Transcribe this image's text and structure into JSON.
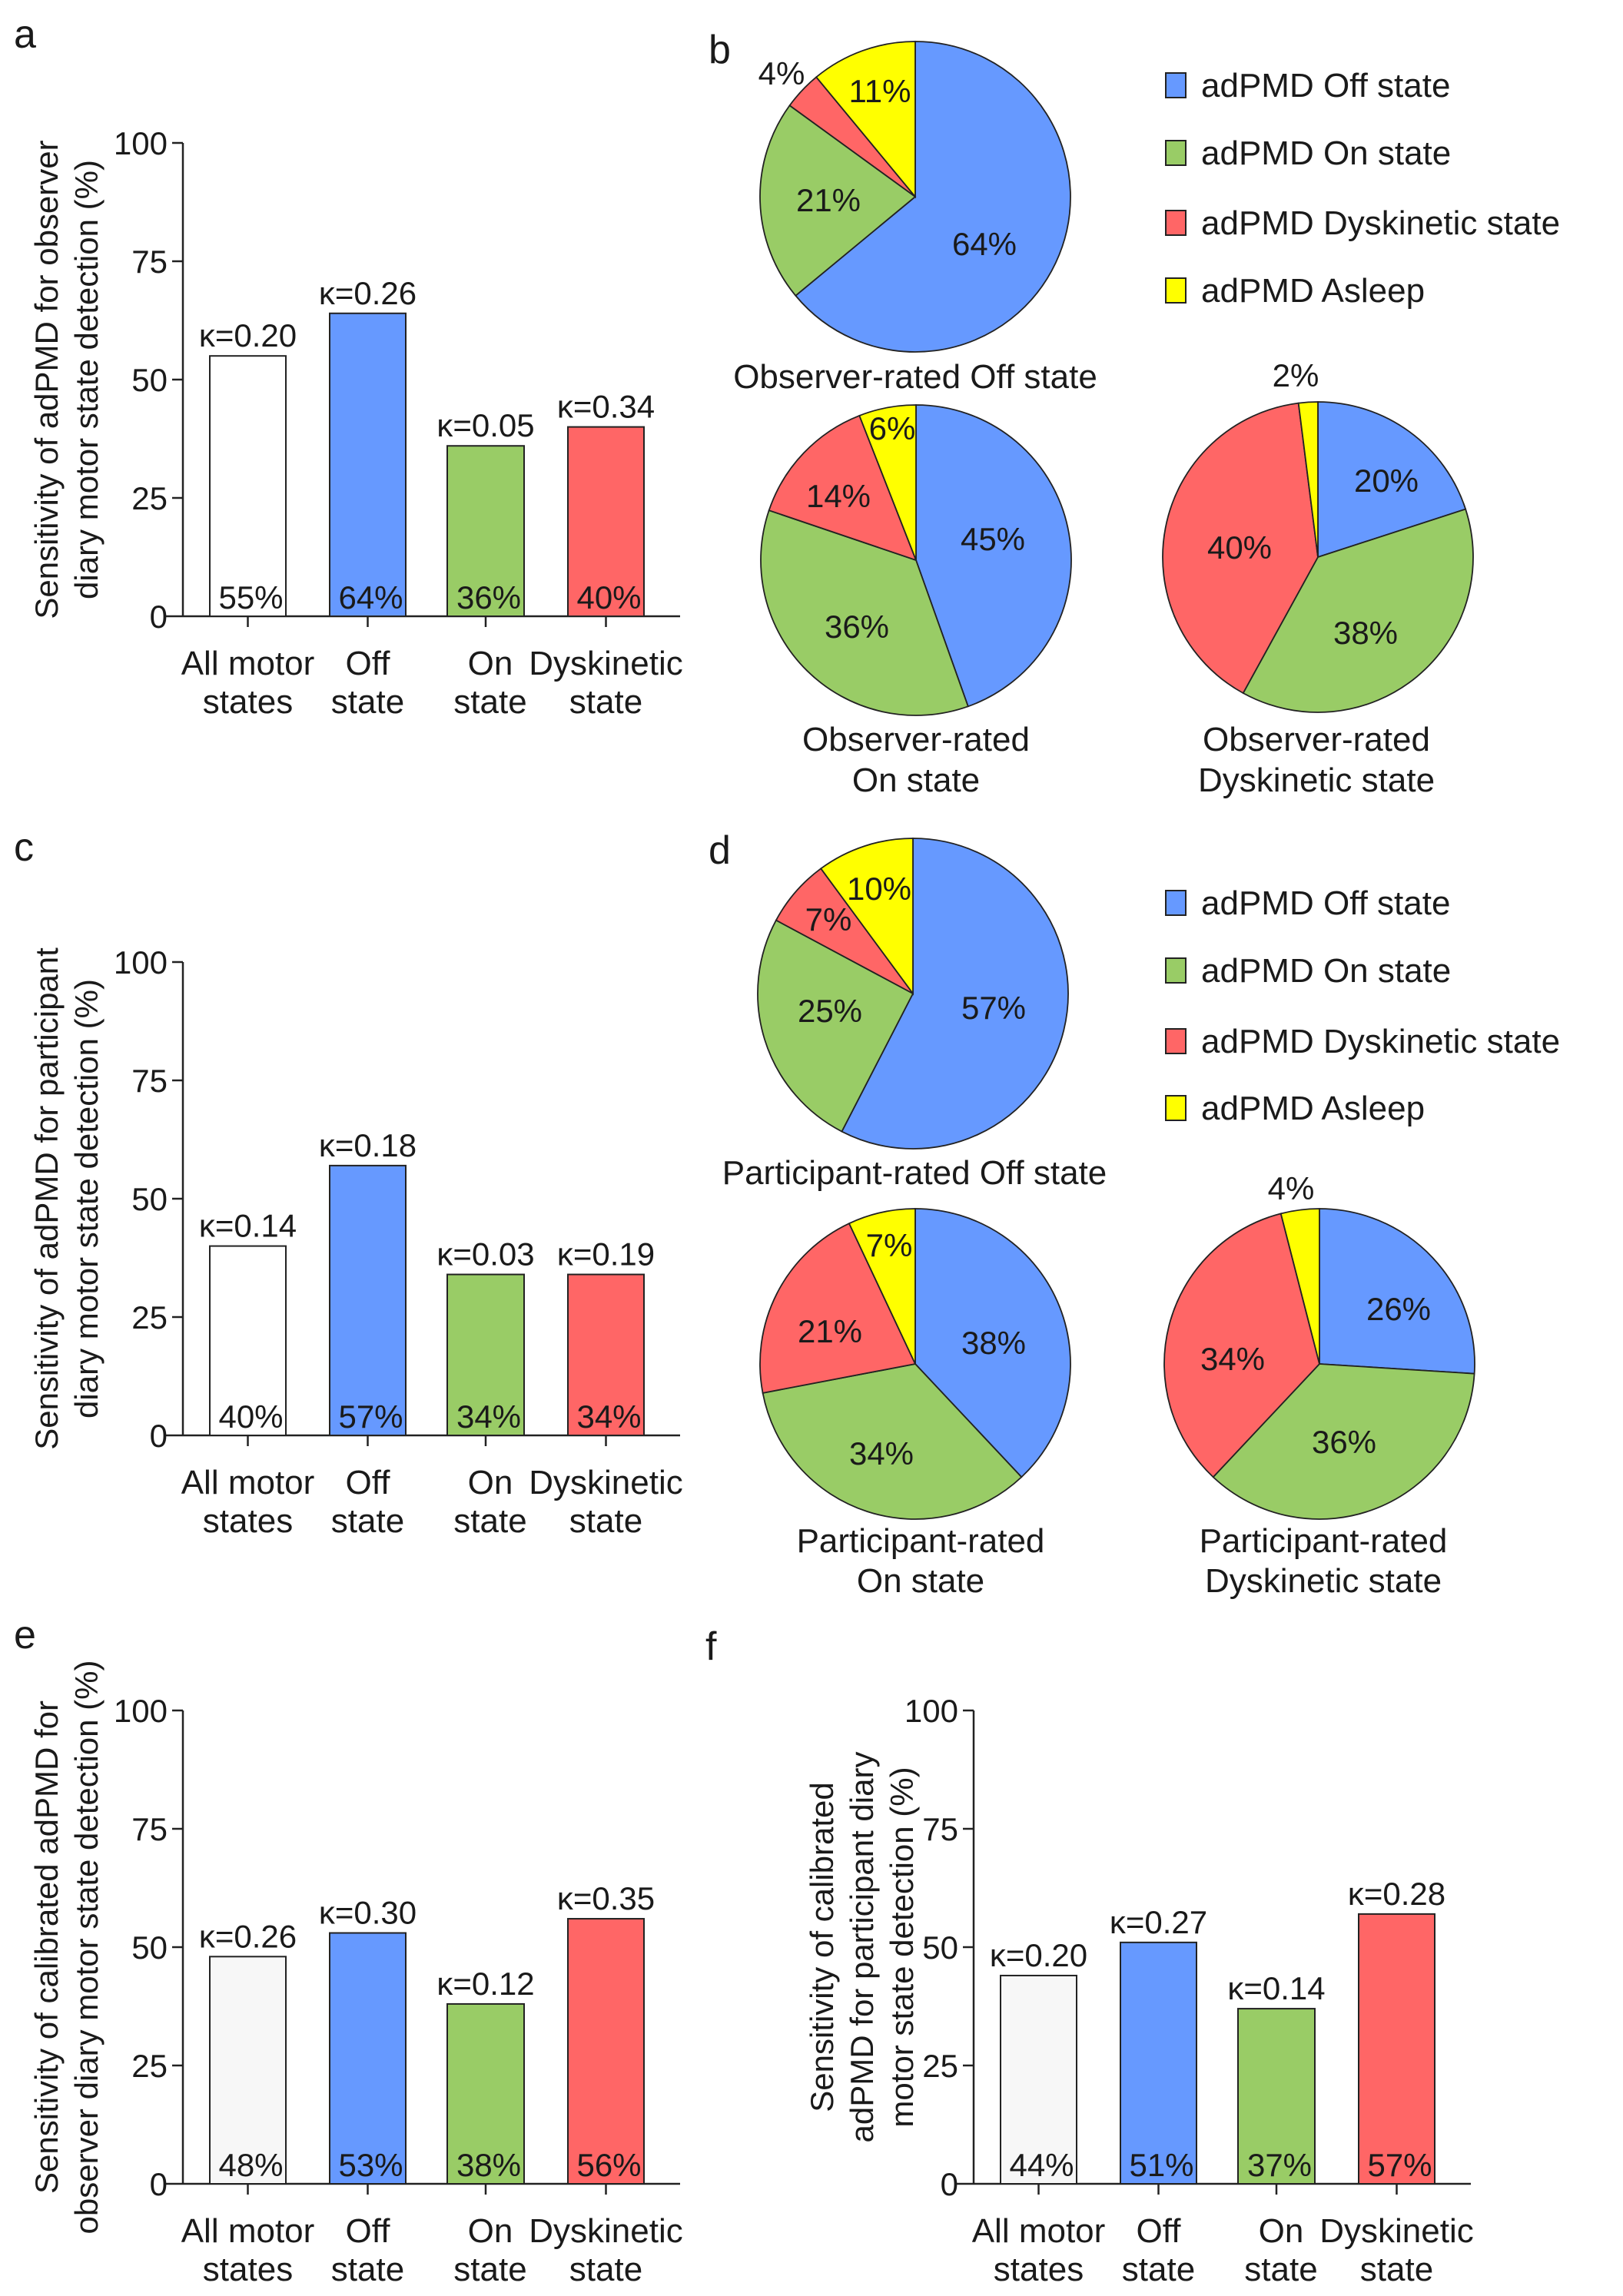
{
  "colors": {
    "off": "#6699ff",
    "on": "#99cc66",
    "dyskinetic": "#ff6666",
    "asleep": "#ffff00",
    "all_observer": "#ffffff",
    "all_calibrated": "#f7f7f7"
  },
  "legend": [
    "adPMD Off state",
    "adPMD On state",
    "adPMD Dyskinetic state",
    "adPMD Asleep"
  ],
  "chart_data": [
    {
      "panel": "a",
      "type": "bar",
      "ylabel_lines": [
        "Sensitivity of adPMD for observer",
        "diary motor state detection (%)"
      ],
      "ylim": [
        0,
        100
      ],
      "yticks": [
        "0",
        "25",
        "50",
        "75",
        "100"
      ],
      "categories": [
        [
          "All motor",
          "states"
        ],
        [
          "Off",
          "state"
        ],
        [
          "On",
          "state"
        ],
        [
          "Dyskinetic",
          "state"
        ]
      ],
      "values": [
        55,
        64,
        36,
        40
      ],
      "value_labels": [
        "55%",
        "64%",
        "36%",
        "40%"
      ],
      "kappa_labels": [
        "κ=0.20",
        "κ=0.26",
        "κ=0.05",
        "κ=0.34"
      ],
      "bar_colors": [
        "#ffffff",
        "#6699ff",
        "#99cc66",
        "#ff6666"
      ]
    },
    {
      "panel": "b",
      "type": "pie",
      "pies": [
        {
          "title_lines": [
            "Observer-rated Off state"
          ],
          "values": [
            64,
            21,
            4,
            11
          ],
          "labels": [
            "64%",
            "21%",
            "4%",
            "11%"
          ]
        },
        {
          "title_lines": [
            "Observer-rated",
            "On state"
          ],
          "values": [
            45,
            36,
            14,
            6
          ],
          "labels": [
            "45%",
            "36%",
            "14%",
            "6%"
          ]
        },
        {
          "title_lines": [
            "Observer-rated",
            "Dyskinetic state"
          ],
          "values": [
            20,
            38,
            40,
            2
          ],
          "labels": [
            "20%",
            "38%",
            "40%",
            "2%"
          ]
        }
      ]
    },
    {
      "panel": "c",
      "type": "bar",
      "ylabel_lines": [
        "Sensitivity of adPMD for participant",
        "diary motor state detection (%)"
      ],
      "ylim": [
        0,
        100
      ],
      "yticks": [
        "0",
        "25",
        "50",
        "75",
        "100"
      ],
      "categories": [
        [
          "All motor",
          "states"
        ],
        [
          "Off",
          "state"
        ],
        [
          "On",
          "state"
        ],
        [
          "Dyskinetic",
          "state"
        ]
      ],
      "values": [
        40,
        57,
        34,
        34
      ],
      "value_labels": [
        "40%",
        "57%",
        "34%",
        "34%"
      ],
      "kappa_labels": [
        "κ=0.14",
        "κ=0.18",
        "κ=0.03",
        "κ=0.19"
      ],
      "bar_colors": [
        "#ffffff",
        "#6699ff",
        "#99cc66",
        "#ff6666"
      ]
    },
    {
      "panel": "d",
      "type": "pie",
      "pies": [
        {
          "title_lines": [
            "Participant-rated  Off state"
          ],
          "values": [
            57,
            25,
            7,
            10
          ],
          "labels": [
            "57%",
            "25%",
            "7%",
            "10%"
          ]
        },
        {
          "title_lines": [
            "Participant-rated",
            "On state"
          ],
          "values": [
            38,
            34,
            21,
            7
          ],
          "labels": [
            "38%",
            "34%",
            "21%",
            "7%"
          ]
        },
        {
          "title_lines": [
            "Participant-rated",
            "Dyskinetic state"
          ],
          "values": [
            26,
            36,
            34,
            4
          ],
          "labels": [
            "26%",
            "36%",
            "34%",
            "4%"
          ]
        }
      ]
    },
    {
      "panel": "e",
      "type": "bar",
      "ylabel_lines": [
        "Sensitivity of calibrated adPMD for",
        "observer diary motor state detection (%)"
      ],
      "ylim": [
        0,
        100
      ],
      "yticks": [
        "0",
        "25",
        "50",
        "75",
        "100"
      ],
      "categories": [
        [
          "All motor",
          "states"
        ],
        [
          "Off",
          "state"
        ],
        [
          "On",
          "state"
        ],
        [
          "Dyskinetic",
          "state"
        ]
      ],
      "values": [
        48,
        53,
        38,
        56
      ],
      "value_labels": [
        "48%",
        "53%",
        "38%",
        "56%"
      ],
      "kappa_labels": [
        "κ=0.26",
        "κ=0.30",
        "κ=0.12",
        "κ=0.35"
      ],
      "bar_colors": [
        "#f7f7f7",
        "#6699ff",
        "#99cc66",
        "#ff6666"
      ]
    },
    {
      "panel": "f",
      "type": "bar",
      "ylabel_lines": [
        "Sensitivity of calibrated",
        "adPMD for participant diary",
        "motor state detection (%)"
      ],
      "ylim": [
        0,
        100
      ],
      "yticks": [
        "0",
        "25",
        "50",
        "75",
        "100"
      ],
      "categories": [
        [
          "All motor",
          "states"
        ],
        [
          "Off",
          "state"
        ],
        [
          "On",
          "state"
        ],
        [
          "Dyskinetic",
          "state"
        ]
      ],
      "values": [
        44,
        51,
        37,
        57
      ],
      "value_labels": [
        "44%",
        "51%",
        "37%",
        "57%"
      ],
      "kappa_labels": [
        "κ=0.20",
        "κ=0.27",
        "κ=0.14",
        "κ=0.28"
      ],
      "bar_colors": [
        "#f7f7f7",
        "#6699ff",
        "#99cc66",
        "#ff6666"
      ]
    }
  ]
}
